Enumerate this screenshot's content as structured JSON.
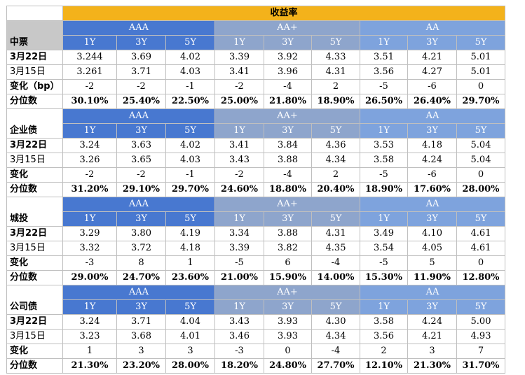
{
  "title": "收益率",
  "groups": [
    "AAA",
    "AA+",
    "AA"
  ],
  "tenors": [
    "1Y",
    "3Y",
    "5Y"
  ],
  "sections": [
    {
      "name": "中票",
      "rows": [
        {
          "label": "3月22日",
          "bold": true,
          "values": [
            "3.244",
            "3.69",
            "4.02",
            "3.39",
            "3.92",
            "4.33",
            "3.51",
            "4.21",
            "5.01"
          ]
        },
        {
          "label": "3月15日",
          "bold": false,
          "values": [
            "3.261",
            "3.71",
            "4.03",
            "3.41",
            "3.96",
            "4.31",
            "3.56",
            "4.27",
            "5.01"
          ]
        },
        {
          "label": "变化（bp）",
          "bold": true,
          "values": [
            "-2",
            "-2",
            "-1",
            "-2",
            "-4",
            "2",
            "-5",
            "-6",
            "0"
          ]
        },
        {
          "label": "分位数",
          "bold": true,
          "values": [
            "30.10%",
            "25.40%",
            "22.50%",
            "25.00%",
            "21.80%",
            "18.90%",
            "26.50%",
            "26.40%",
            "29.70%"
          ]
        }
      ]
    },
    {
      "name": "企业债",
      "rows": [
        {
          "label": "3月22日",
          "bold": true,
          "values": [
            "3.24",
            "3.63",
            "4.02",
            "3.41",
            "3.84",
            "4.36",
            "3.53",
            "4.18",
            "5.04"
          ]
        },
        {
          "label": "3月15日",
          "bold": false,
          "values": [
            "3.26",
            "3.65",
            "4.03",
            "3.43",
            "3.88",
            "4.34",
            "3.58",
            "4.24",
            "5.04"
          ]
        },
        {
          "label": "变化",
          "bold": true,
          "values": [
            "-2",
            "-2",
            "-1",
            "-2",
            "-4",
            "2",
            "-5",
            "-6",
            "0"
          ]
        },
        {
          "label": "分位数",
          "bold": true,
          "values": [
            "31.20%",
            "29.10%",
            "29.70%",
            "24.60%",
            "18.80%",
            "20.40%",
            "18.90%",
            "17.60%",
            "28.00%"
          ]
        }
      ]
    },
    {
      "name": "城投",
      "rows": [
        {
          "label": "3月22日",
          "bold": true,
          "values": [
            "3.29",
            "3.80",
            "4.19",
            "3.34",
            "3.88",
            "4.31",
            "3.49",
            "4.10",
            "4.61"
          ]
        },
        {
          "label": "3月15日",
          "bold": false,
          "values": [
            "3.32",
            "3.72",
            "4.18",
            "3.39",
            "3.82",
            "4.35",
            "3.54",
            "4.05",
            "4.61"
          ]
        },
        {
          "label": "变化",
          "bold": true,
          "values": [
            "-3",
            "8",
            "1",
            "-5",
            "6",
            "-4",
            "-5",
            "5",
            "0"
          ]
        },
        {
          "label": "分位数",
          "bold": true,
          "values": [
            "29.00%",
            "24.70%",
            "23.60%",
            "21.00%",
            "15.90%",
            "14.00%",
            "15.30%",
            "11.90%",
            "12.80%"
          ]
        }
      ]
    },
    {
      "name": "公司债",
      "rows": [
        {
          "label": "3月22日",
          "bold": true,
          "values": [
            "3.24",
            "3.71",
            "4.04",
            "3.43",
            "3.93",
            "4.30",
            "3.58",
            "4.24",
            "5.00"
          ]
        },
        {
          "label": "3月15日",
          "bold": false,
          "values": [
            "3.23",
            "3.68",
            "4.01",
            "3.46",
            "3.93",
            "4.34",
            "3.56",
            "4.21",
            "4.93"
          ]
        },
        {
          "label": "变化",
          "bold": true,
          "values": [
            "1",
            "3",
            "3",
            "-3",
            "0",
            "-4",
            "2",
            "3",
            "7"
          ]
        },
        {
          "label": "分位数",
          "bold": true,
          "values": [
            "21.30%",
            "23.20%",
            "28.00%",
            "18.20%",
            "24.80%",
            "27.70%",
            "12.10%",
            "21.30%",
            "31.70%"
          ]
        }
      ]
    }
  ]
}
